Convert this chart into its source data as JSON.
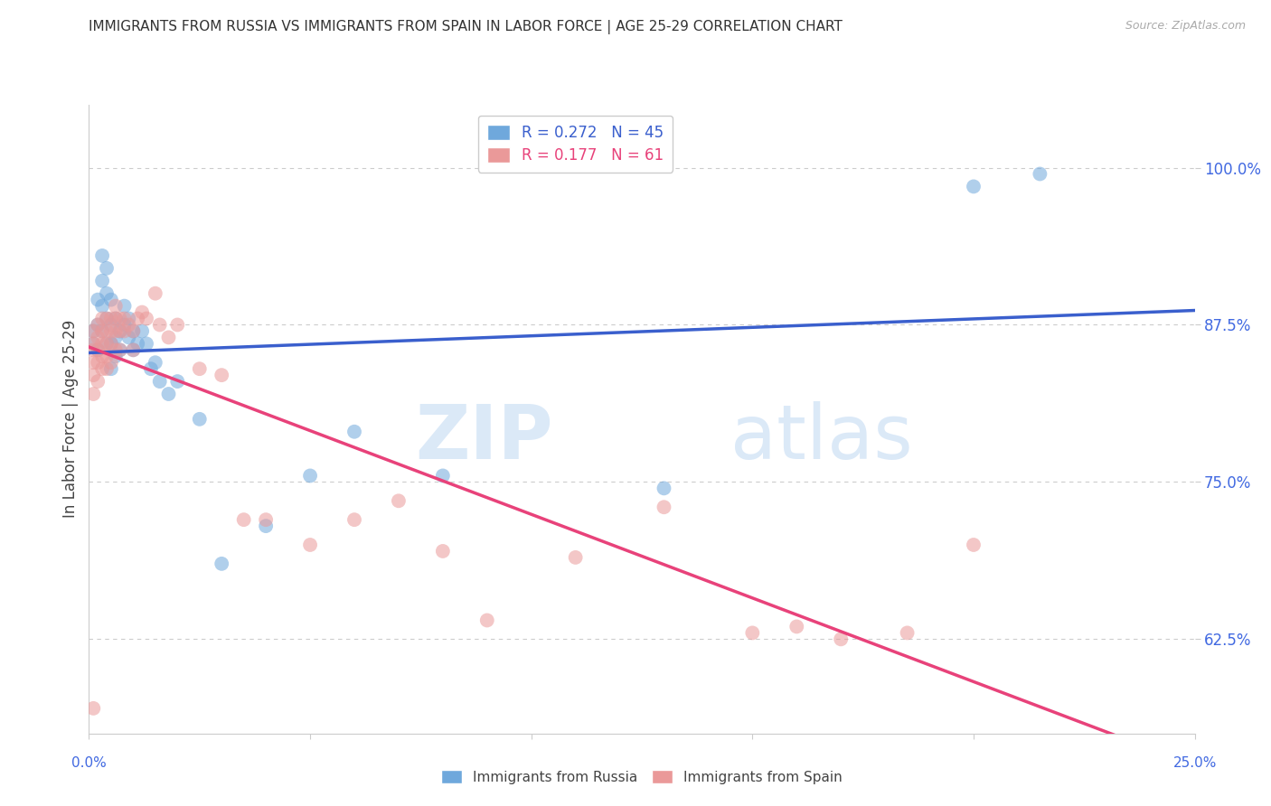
{
  "title": "IMMIGRANTS FROM RUSSIA VS IMMIGRANTS FROM SPAIN IN LABOR FORCE | AGE 25-29 CORRELATION CHART",
  "source": "Source: ZipAtlas.com",
  "ylabel": "In Labor Force | Age 25-29",
  "ytick_labels": [
    "62.5%",
    "75.0%",
    "87.5%",
    "100.0%"
  ],
  "ytick_values": [
    0.625,
    0.75,
    0.875,
    1.0
  ],
  "xlim": [
    0.0,
    0.25
  ],
  "ylim": [
    0.55,
    1.05
  ],
  "color_russia": "#6fa8dc",
  "color_spain": "#ea9999",
  "line_color_russia": "#3a5fcd",
  "line_color_spain": "#e8427a",
  "russia_x": [
    0.001,
    0.001,
    0.002,
    0.002,
    0.002,
    0.003,
    0.003,
    0.003,
    0.003,
    0.004,
    0.004,
    0.004,
    0.004,
    0.005,
    0.005,
    0.005,
    0.005,
    0.006,
    0.006,
    0.006,
    0.007,
    0.007,
    0.008,
    0.008,
    0.009,
    0.009,
    0.01,
    0.01,
    0.011,
    0.012,
    0.013,
    0.014,
    0.015,
    0.016,
    0.018,
    0.02,
    0.025,
    0.03,
    0.04,
    0.05,
    0.06,
    0.08,
    0.13,
    0.2,
    0.215
  ],
  "russia_y": [
    0.87,
    0.86,
    0.895,
    0.875,
    0.855,
    0.93,
    0.91,
    0.89,
    0.87,
    0.92,
    0.9,
    0.88,
    0.86,
    0.895,
    0.875,
    0.86,
    0.84,
    0.88,
    0.865,
    0.85,
    0.87,
    0.855,
    0.89,
    0.875,
    0.88,
    0.865,
    0.87,
    0.855,
    0.86,
    0.87,
    0.86,
    0.84,
    0.845,
    0.83,
    0.82,
    0.83,
    0.8,
    0.685,
    0.715,
    0.755,
    0.79,
    0.755,
    0.745,
    0.985,
    0.995
  ],
  "spain_x": [
    0.001,
    0.001,
    0.001,
    0.001,
    0.001,
    0.001,
    0.001,
    0.002,
    0.002,
    0.002,
    0.002,
    0.002,
    0.003,
    0.003,
    0.003,
    0.003,
    0.003,
    0.004,
    0.004,
    0.004,
    0.004,
    0.004,
    0.005,
    0.005,
    0.005,
    0.005,
    0.006,
    0.006,
    0.006,
    0.006,
    0.007,
    0.007,
    0.007,
    0.008,
    0.008,
    0.009,
    0.01,
    0.01,
    0.011,
    0.012,
    0.013,
    0.015,
    0.016,
    0.018,
    0.02,
    0.025,
    0.03,
    0.035,
    0.04,
    0.05,
    0.06,
    0.07,
    0.08,
    0.09,
    0.11,
    0.13,
    0.15,
    0.16,
    0.17,
    0.185,
    0.2
  ],
  "spain_y": [
    0.87,
    0.86,
    0.855,
    0.845,
    0.835,
    0.82,
    0.57,
    0.875,
    0.865,
    0.855,
    0.845,
    0.83,
    0.88,
    0.87,
    0.86,
    0.85,
    0.84,
    0.88,
    0.87,
    0.86,
    0.85,
    0.84,
    0.88,
    0.87,
    0.86,
    0.845,
    0.89,
    0.88,
    0.87,
    0.855,
    0.88,
    0.87,
    0.855,
    0.88,
    0.87,
    0.875,
    0.87,
    0.855,
    0.88,
    0.885,
    0.88,
    0.9,
    0.875,
    0.865,
    0.875,
    0.84,
    0.835,
    0.72,
    0.72,
    0.7,
    0.72,
    0.735,
    0.695,
    0.64,
    0.69,
    0.73,
    0.63,
    0.635,
    0.625,
    0.63,
    0.7
  ]
}
